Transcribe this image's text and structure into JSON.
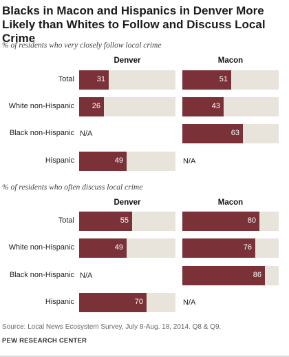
{
  "title": "Blacks in Macon and Hispanics in Denver More Likely than Whites to Follow and Discuss Local Crime",
  "source": "Source: Local News Ecosystem Survey, July 8-Aug. 18, 2014. Q8 & Q9.",
  "brand": "PEW RESEARCH CENTER",
  "na_label": "N/A",
  "colors": {
    "bar": "#7a3238",
    "track": "#e8e4dc"
  },
  "chart_data": [
    {
      "type": "bar",
      "orientation": "horizontal",
      "title": "% of residents who very closely follow local crime",
      "categories": [
        "Total",
        "White non-Hispanic",
        "Black non-Hispanic",
        "Hispanic"
      ],
      "ylim": [
        0,
        100
      ],
      "series": [
        {
          "name": "Denver",
          "values": [
            31,
            26,
            null,
            49
          ]
        },
        {
          "name": "Macon",
          "values": [
            51,
            43,
            63,
            null
          ]
        }
      ]
    },
    {
      "type": "bar",
      "orientation": "horizontal",
      "title": "% of residents who often discuss local crime",
      "categories": [
        "Total",
        "White non-Hispanic",
        "Black non-Hispanic",
        "Hispanic"
      ],
      "ylim": [
        0,
        100
      ],
      "series": [
        {
          "name": "Denver",
          "values": [
            55,
            49,
            null,
            70
          ]
        },
        {
          "name": "Macon",
          "values": [
            80,
            76,
            86,
            null
          ]
        }
      ]
    }
  ]
}
